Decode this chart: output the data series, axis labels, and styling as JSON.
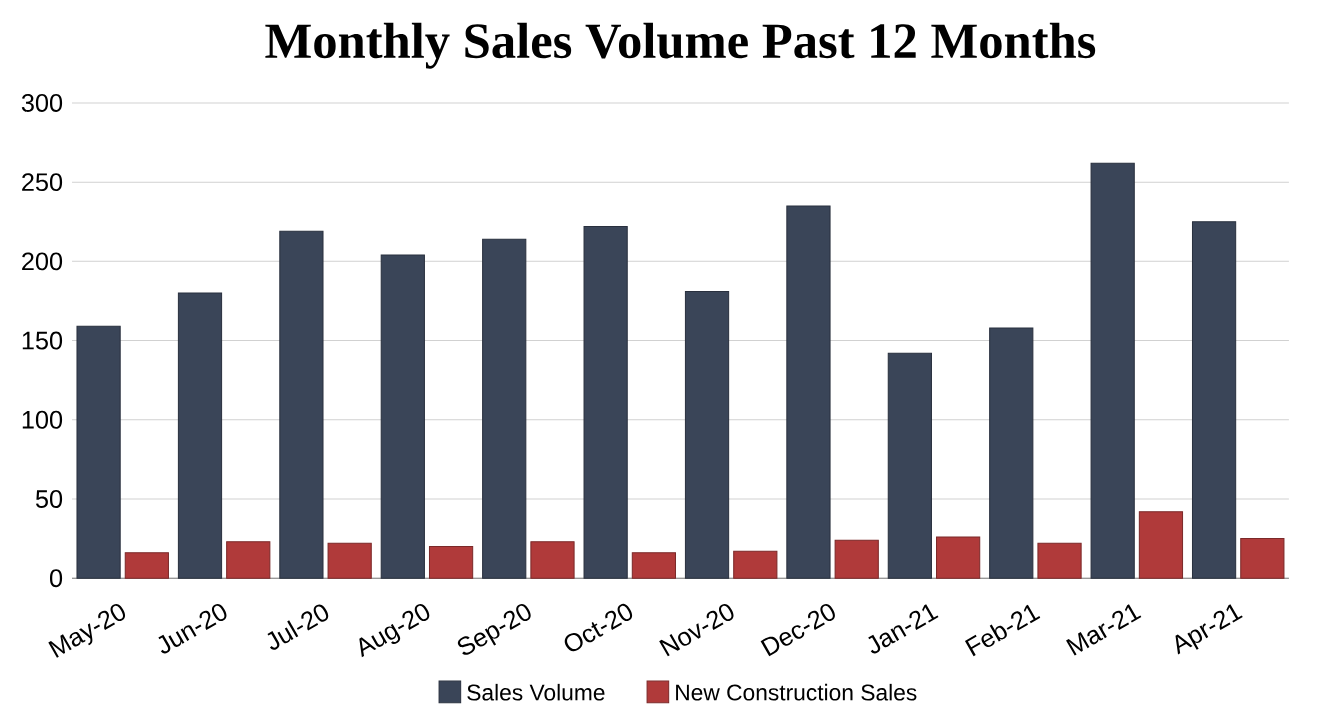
{
  "chart_data": {
    "type": "bar",
    "title": "Monthly Sales Volume Past 12 Months",
    "categories": [
      "May-20",
      "Jun-20",
      "Jul-20",
      "Aug-20",
      "Sep-20",
      "Oct-20",
      "Nov-20",
      "Dec-20",
      "Jan-21",
      "Feb-21",
      "Mar-21",
      "Apr-21"
    ],
    "series": [
      {
        "name": "Sales Volume",
        "color": "#3a4558",
        "values": [
          159,
          180,
          219,
          204,
          214,
          222,
          181,
          235,
          142,
          158,
          262,
          225
        ]
      },
      {
        "name": "New Construction Sales",
        "color": "#b03a3a",
        "values": [
          16,
          23,
          22,
          20,
          23,
          16,
          17,
          24,
          26,
          22,
          42,
          25
        ]
      }
    ],
    "ylim": [
      0,
      300
    ],
    "yticks": [
      0,
      50,
      100,
      150,
      200,
      250,
      300
    ],
    "grid": "y",
    "legend": "bottom"
  }
}
